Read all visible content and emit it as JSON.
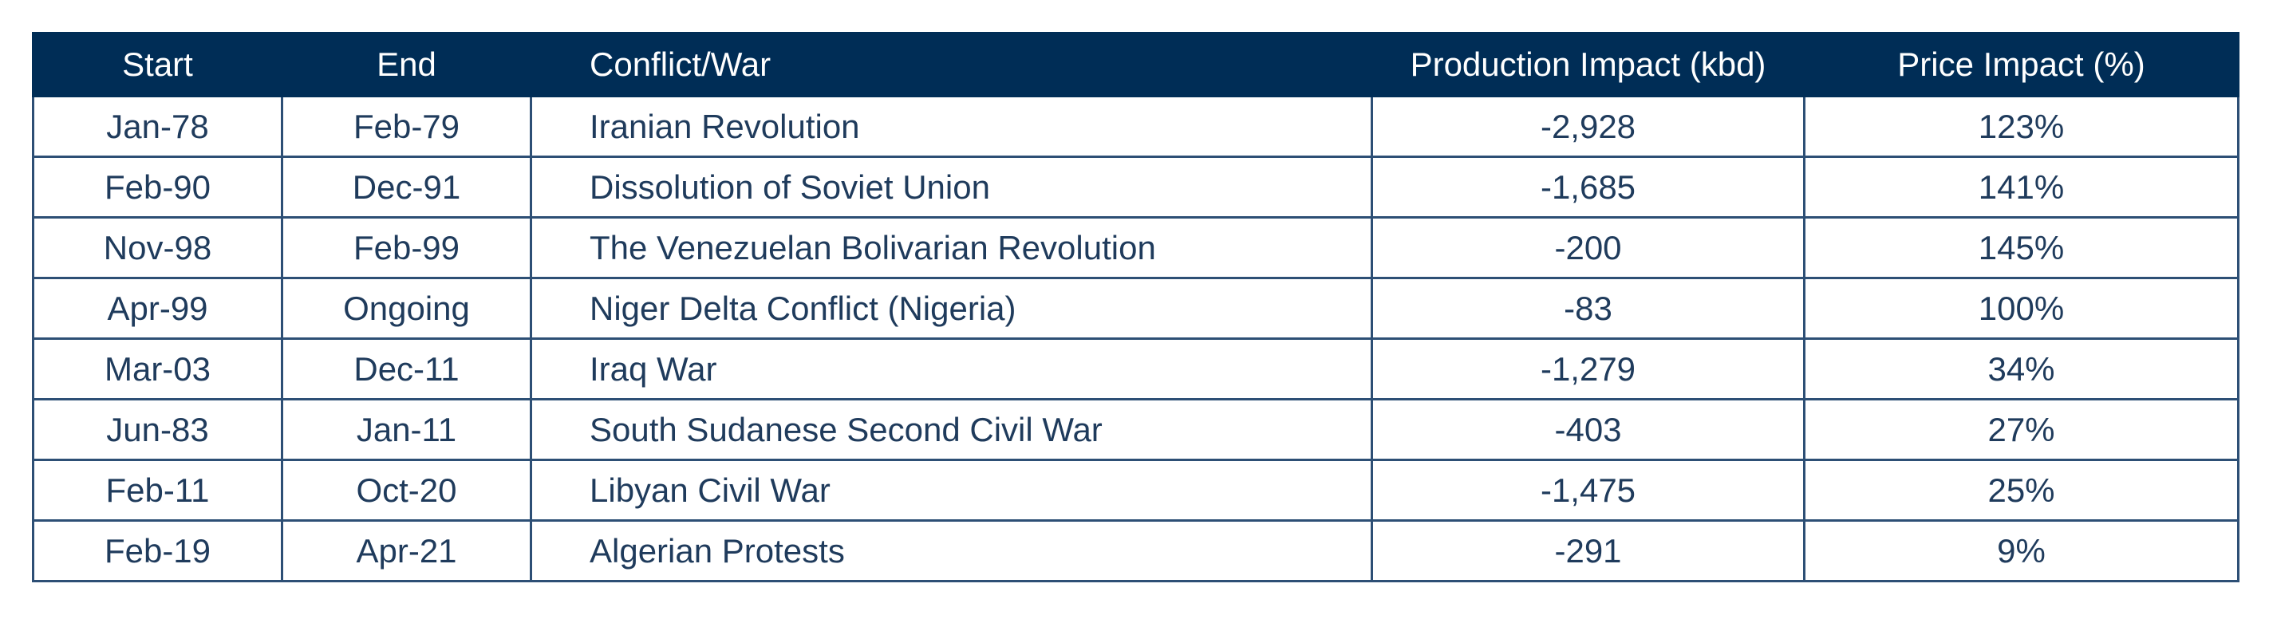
{
  "table": {
    "headers": {
      "start": "Start",
      "end": "End",
      "conflict": "Conflict/War",
      "production": "Production Impact (kbd)",
      "price": "Price Impact (%)"
    },
    "rows": [
      {
        "start": "Jan-78",
        "end": "Feb-79",
        "conflict": "Iranian Revolution",
        "production": "-2,928",
        "price": "123%"
      },
      {
        "start": "Feb-90",
        "end": "Dec-91",
        "conflict": "Dissolution of Soviet Union",
        "production": "-1,685",
        "price": "141%"
      },
      {
        "start": "Nov-98",
        "end": "Feb-99",
        "conflict": "The Venezuelan Bolivarian Revolution",
        "production": "-200",
        "price": "145%"
      },
      {
        "start": "Apr-99",
        "end": "Ongoing",
        "conflict": "Niger Delta Conflict (Nigeria)",
        "production": "-83",
        "price": "100%"
      },
      {
        "start": "Mar-03",
        "end": "Dec-11",
        "conflict": "Iraq War",
        "production": "-1,279",
        "price": "34%"
      },
      {
        "start": "Jun-83",
        "end": "Jan-11",
        "conflict": "South Sudanese Second Civil War",
        "production": "-403",
        "price": "27%"
      },
      {
        "start": "Feb-11",
        "end": "Oct-20",
        "conflict": "Libyan Civil War",
        "production": "-1,475",
        "price": "25%"
      },
      {
        "start": "Feb-19",
        "end": "Apr-21",
        "conflict": "Algerian Protests",
        "production": "-291",
        "price": "9%"
      }
    ]
  },
  "colors": {
    "header_bg": "#002d56",
    "header_text": "#ffffff",
    "border": "#2d4f75",
    "cell_text": "#1f3b5c"
  }
}
